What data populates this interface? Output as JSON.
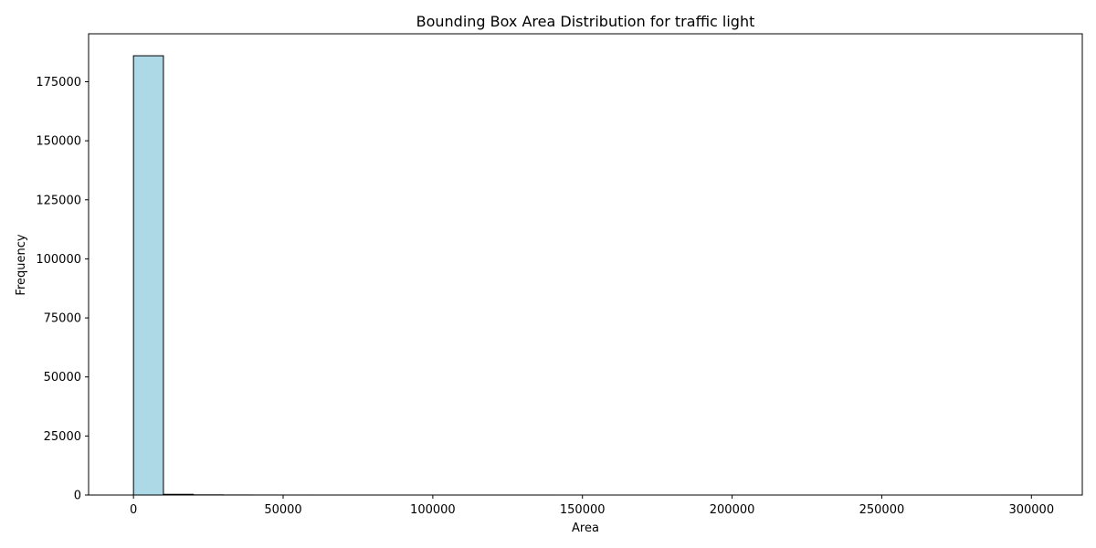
{
  "chart_data": {
    "type": "bar",
    "title": "Bounding Box Area Distribution for traffic light",
    "xlabel": "Area",
    "ylabel": "Frequency",
    "bin_width": 10000,
    "bins": [
      {
        "x0": 0,
        "x1": 10000,
        "count": 186000
      },
      {
        "x0": 10000,
        "x1": 20000,
        "count": 300
      },
      {
        "x0": 20000,
        "x1": 30000,
        "count": 80
      },
      {
        "x0": 30000,
        "x1": 40000,
        "count": 30
      },
      {
        "x0": 40000,
        "x1": 50000,
        "count": 15
      },
      {
        "x0": 50000,
        "x1": 60000,
        "count": 8
      },
      {
        "x0": 60000,
        "x1": 70000,
        "count": 5
      },
      {
        "x0": 70000,
        "x1": 80000,
        "count": 3
      },
      {
        "x0": 80000,
        "x1": 90000,
        "count": 2
      },
      {
        "x0": 90000,
        "x1": 100000,
        "count": 2
      },
      {
        "x0": 100000,
        "x1": 110000,
        "count": 1
      },
      {
        "x0": 110000,
        "x1": 120000,
        "count": 1
      },
      {
        "x0": 120000,
        "x1": 130000,
        "count": 1
      },
      {
        "x0": 130000,
        "x1": 140000,
        "count": 1
      },
      {
        "x0": 140000,
        "x1": 150000,
        "count": 0
      },
      {
        "x0": 150000,
        "x1": 160000,
        "count": 0
      },
      {
        "x0": 160000,
        "x1": 170000,
        "count": 0
      },
      {
        "x0": 170000,
        "x1": 180000,
        "count": 0
      },
      {
        "x0": 180000,
        "x1": 190000,
        "count": 0
      },
      {
        "x0": 190000,
        "x1": 200000,
        "count": 0
      },
      {
        "x0": 200000,
        "x1": 210000,
        "count": 0
      },
      {
        "x0": 210000,
        "x1": 220000,
        "count": 0
      },
      {
        "x0": 220000,
        "x1": 230000,
        "count": 0
      },
      {
        "x0": 230000,
        "x1": 240000,
        "count": 0
      },
      {
        "x0": 240000,
        "x1": 250000,
        "count": 0
      },
      {
        "x0": 250000,
        "x1": 260000,
        "count": 0
      },
      {
        "x0": 260000,
        "x1": 270000,
        "count": 0
      },
      {
        "x0": 270000,
        "x1": 280000,
        "count": 0
      },
      {
        "x0": 280000,
        "x1": 290000,
        "count": 0
      },
      {
        "x0": 290000,
        "x1": 300000,
        "count": 1
      }
    ],
    "xlim": [
      -15000,
      317000
    ],
    "ylim": [
      0,
      195300
    ],
    "xticks": [
      0,
      50000,
      100000,
      150000,
      200000,
      250000,
      300000
    ],
    "xtick_labels": [
      "0",
      "50000",
      "100000",
      "150000",
      "200000",
      "250000",
      "300000"
    ],
    "yticks": [
      0,
      25000,
      50000,
      75000,
      100000,
      125000,
      150000,
      175000
    ],
    "ytick_labels": [
      "0",
      "25000",
      "50000",
      "75000",
      "100000",
      "125000",
      "150000",
      "175000"
    ],
    "grid": false,
    "colors": {
      "bar_fill": "#add8e6",
      "bar_edge": "#000000",
      "axis": "#000000"
    }
  }
}
